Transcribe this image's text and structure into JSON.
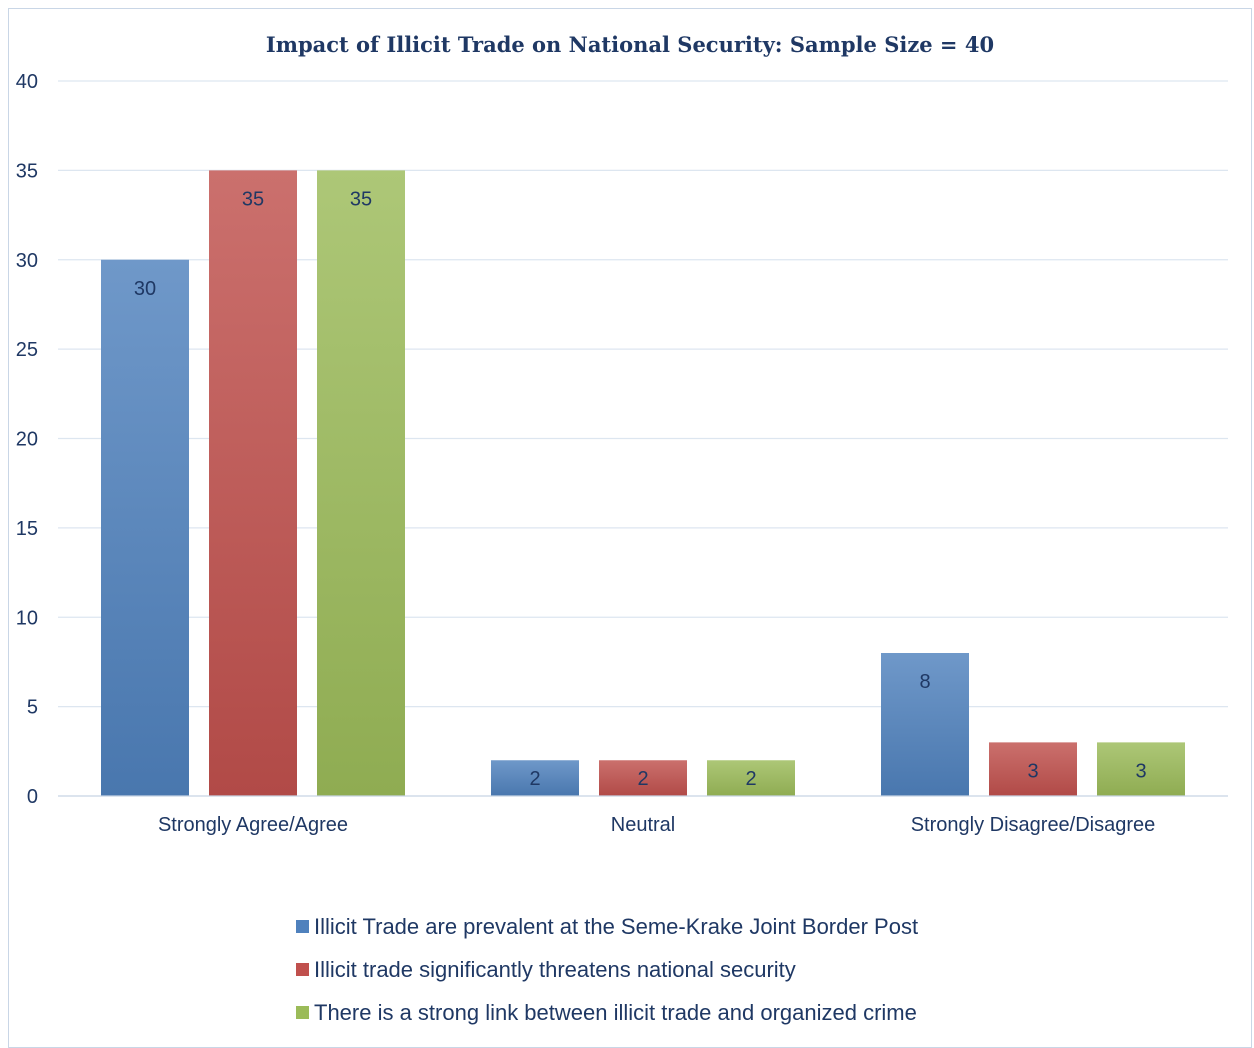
{
  "chart_data": {
    "type": "bar",
    "title": "Impact of Illicit Trade on National Security: Sample Size = 40",
    "categories": [
      "Strongly Agree/Agree",
      "Neutral",
      "Strongly Disagree/Disagree"
    ],
    "series": [
      {
        "name": "Illicit Trade are prevalent at the Seme-Krake Joint Border Post",
        "values": [
          30,
          2,
          8
        ],
        "color": "#4f81bd"
      },
      {
        "name": "Illicit trade significantly threatens national security",
        "values": [
          35,
          2,
          3
        ],
        "color": "#c0504d"
      },
      {
        "name": "There is a strong link between illicit trade and organized crime",
        "values": [
          35,
          2,
          3
        ],
        "color": "#9bbb59"
      }
    ],
    "ylim": [
      0,
      40
    ],
    "yticks": [
      0,
      5,
      10,
      15,
      20,
      25,
      30,
      35,
      40
    ],
    "xlabel": "",
    "ylabel": "",
    "grid": true,
    "data_labels": true,
    "legend_position": "bottom"
  }
}
